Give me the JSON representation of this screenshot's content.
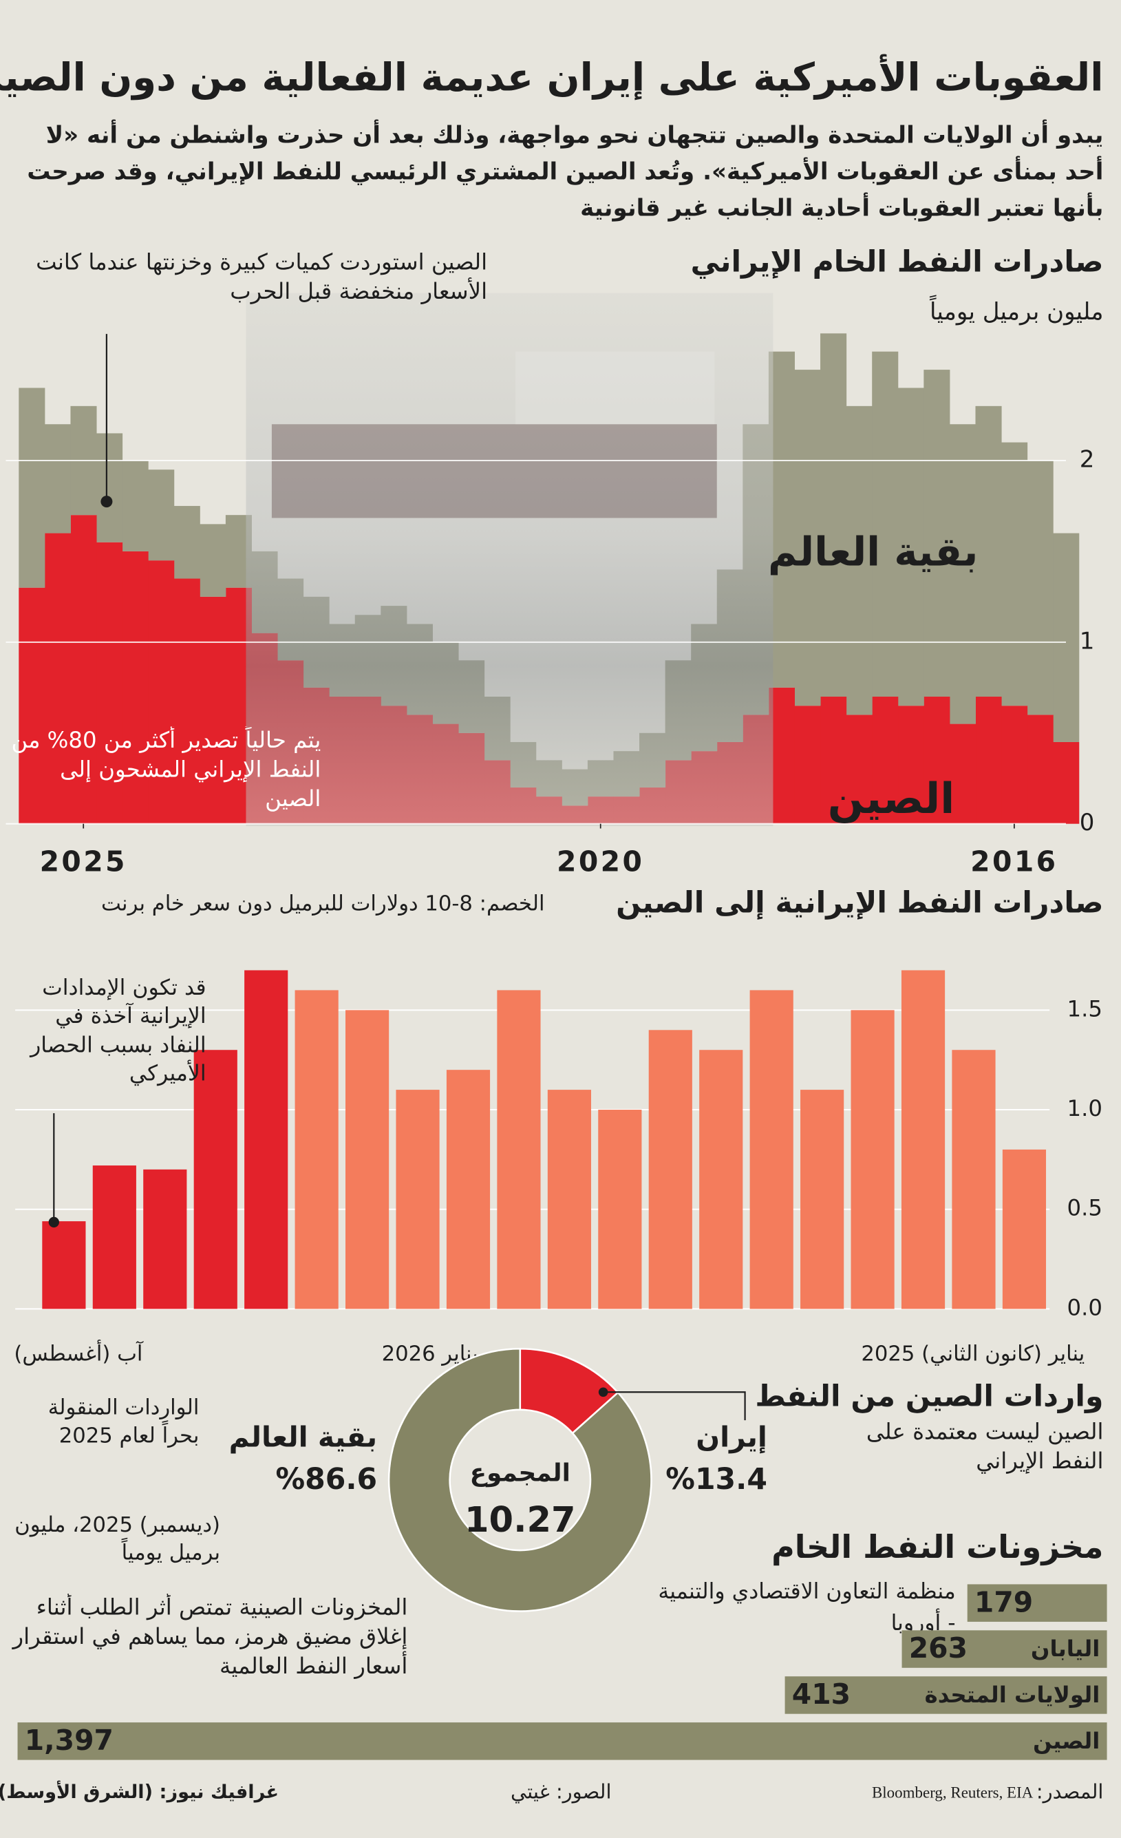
{
  "header": {
    "title": "العقوبات الأميركية على إيران عديمة الفعالية من دون الصين",
    "subtitle": "يبدو أن الولايات المتحدة والصين تتجهان نحو مواجهة، وذلك بعد أن حذرت واشنطن من أنه «لا أحد بمنأى عن العقوبات الأميركية». وتُعد الصين المشتري الرئيسي للنفط الإيراني، وقد صرحت بأنها تعتبر العقوبات أحادية الجانب غير قانونية"
  },
  "chart_data": [
    {
      "type": "bar",
      "stacked": true,
      "title": "صادرات النفط الخام الإيراني",
      "unit": "مليون برميل يومياً",
      "x": [
        2015.5,
        2015.75,
        2016,
        2016.25,
        2016.5,
        2016.75,
        2017,
        2017.25,
        2017.5,
        2017.75,
        2018,
        2018.25,
        2018.5,
        2018.75,
        2019,
        2019.25,
        2019.5,
        2019.75,
        2020,
        2020.25,
        2020.5,
        2020.75,
        2021,
        2021.25,
        2021.5,
        2021.75,
        2022,
        2022.25,
        2022.5,
        2022.75,
        2023,
        2023.25,
        2023.5,
        2023.75,
        2024,
        2024.25,
        2024.5,
        2024.75,
        2025,
        2025.25,
        2025.5
      ],
      "xlim": [
        2025.75,
        2015.5
      ],
      "xticks": [
        2016,
        2020,
        2025
      ],
      "ylim": [
        0,
        3
      ],
      "yticks": [
        0,
        1,
        2
      ],
      "grid": true,
      "series": [
        {
          "name": "الصين",
          "color": "#e3222b",
          "values": [
            0.45,
            0.6,
            0.65,
            0.7,
            0.55,
            0.7,
            0.65,
            0.7,
            0.6,
            0.7,
            0.65,
            0.75,
            0.6,
            0.45,
            0.4,
            0.35,
            0.2,
            0.15,
            0.15,
            0.1,
            0.15,
            0.2,
            0.35,
            0.5,
            0.55,
            0.6,
            0.65,
            0.7,
            0.7,
            0.75,
            0.9,
            1.05,
            1.3,
            1.25,
            1.35,
            1.45,
            1.5,
            1.55,
            1.7,
            1.6,
            1.3
          ]
        },
        {
          "name": "بقية العالم",
          "color": "#9d9d86",
          "values": [
            1.15,
            1.4,
            1.45,
            1.6,
            1.65,
            1.8,
            1.75,
            1.9,
            1.7,
            2.0,
            1.85,
            1.85,
            1.6,
            0.95,
            0.7,
            0.55,
            0.3,
            0.25,
            0.2,
            0.2,
            0.2,
            0.25,
            0.35,
            0.4,
            0.45,
            0.5,
            0.55,
            0.45,
            0.4,
            0.5,
            0.45,
            0.45,
            0.4,
            0.4,
            0.4,
            0.5,
            0.5,
            0.6,
            0.6,
            0.6,
            1.1
          ]
        }
      ],
      "annotations": [
        "الصين استوردت كميات كبيرة وخزنتها عندما كانت الأسعار منخفضة قبل الحرب",
        "يتم حالياً تصدير أكثر من 80% من النفط الإيراني المشحون إلى الصين"
      ]
    },
    {
      "type": "bar",
      "title": "صادرات النفط الإيرانية إلى الصين",
      "subtitle": "الخصم: 8-10 دولارات للبرميل دون سعر خام برنت",
      "categories": [
        "يناير (كانون الثاني) 2025",
        null,
        null,
        null,
        null,
        null,
        null,
        null,
        null,
        null,
        null,
        null,
        "يناير 2026",
        null,
        null,
        null,
        null,
        null,
        null,
        "آب (أغسطس)"
      ],
      "values": [
        0.8,
        1.3,
        1.7,
        1.5,
        1.1,
        1.6,
        1.3,
        1.4,
        1.0,
        1.1,
        1.6,
        1.2,
        1.1,
        1.5,
        1.6,
        1.7,
        1.3,
        0.7,
        0.72,
        0.44
      ],
      "bar_colors": [
        "#f47c5c",
        "#f47c5c",
        "#f47c5c",
        "#f47c5c",
        "#f47c5c",
        "#f47c5c",
        "#f47c5c",
        "#f47c5c",
        "#f47c5c",
        "#f47c5c",
        "#f47c5c",
        "#f47c5c",
        "#f47c5c",
        "#f47c5c",
        "#f47c5c",
        "#e3222b",
        "#e3222b",
        "#e3222b",
        "#e3222b",
        "#e3222b"
      ],
      "ylim": [
        0,
        1.75
      ],
      "yticks": [
        {
          "value": 0,
          "label": "0.0"
        },
        0.5,
        {
          "value": 1,
          "label": "1.0"
        },
        1.5
      ],
      "grid": true,
      "annotations": [
        "قد تكون الإمدادات الإيرانية آخذة في النفاد بسبب الحصار الأميركي"
      ]
    },
    {
      "type": "donut",
      "title": "واردات الصين من النفط",
      "subtitle": "الصين ليست معتمدة على النفط الإيراني",
      "categories": [
        "إيران",
        "بقية العالم"
      ],
      "values": [
        13.4,
        86.6
      ],
      "value_labels": [
        "%13.4",
        "%86.6"
      ],
      "colors": [
        "#e3222b",
        "#858564"
      ],
      "center_label": "المجموع",
      "total": 10.27,
      "notes": [
        "الواردات المنقولة بحراً لعام 2025",
        "(ديسمبر) 2025، مليون برميل يومياً"
      ]
    },
    {
      "type": "barh",
      "title": "مخزونات النفط الخام",
      "categories": [
        "منظمة التعاون الاقتصادي والتنمية - أوروبا",
        "اليابان",
        "الولايات المتحدة",
        "الصين"
      ],
      "values": [
        179,
        263,
        413,
        1397
      ],
      "value_labels": [
        "179",
        "263",
        "413",
        "1,397"
      ],
      "color": "#8b8b6b",
      "note": "المخزونات الصينية تمتص أثر الطلب أثناء إغلاق مضيق هرمز، مما يساهم في استقرار أسعار النفط العالمية"
    }
  ],
  "footer": {
    "source_label": "المصدر:",
    "source": "Bloomberg, Reuters, EIA",
    "photos": "الصور: غيتي",
    "graphics": "غرافيك نيوز: (الشرق الأوسط)"
  }
}
